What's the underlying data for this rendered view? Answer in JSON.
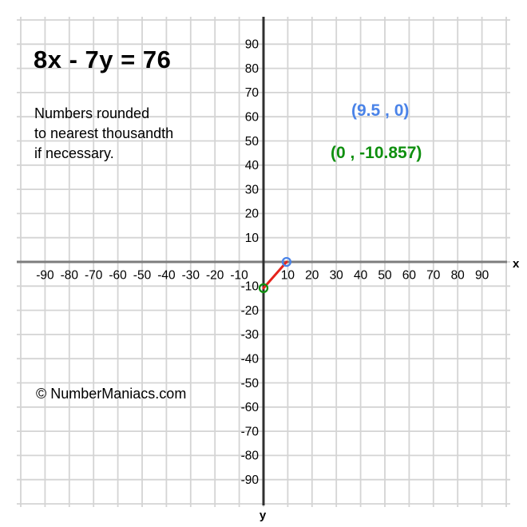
{
  "page": {
    "title": "8x - 7y = 76",
    "note_lines": [
      "Numbers rounded",
      "to nearest thousandth",
      "if necessary."
    ],
    "copyright": "© NumberManiacs.com"
  },
  "chart_data": {
    "type": "line",
    "title": "8x - 7y = 76",
    "equation": "8x - 7y = 76",
    "xlabel": "x",
    "ylabel": "y",
    "xlim": [
      -100,
      100
    ],
    "ylim": [
      -100,
      100
    ],
    "tick_step": 10,
    "x_ticks": [
      -90,
      -80,
      -70,
      -60,
      -50,
      -40,
      -30,
      -20,
      -10,
      10,
      20,
      30,
      40,
      50,
      60,
      70,
      80,
      90
    ],
    "y_ticks": [
      -90,
      -80,
      -70,
      -60,
      -50,
      -40,
      -30,
      -20,
      -10,
      10,
      20,
      30,
      40,
      50,
      60,
      70,
      80,
      90
    ],
    "grid": true,
    "segment_points": [
      [
        9.5,
        0
      ],
      [
        0,
        -10.857
      ]
    ],
    "x_intercept": {
      "x": 9.5,
      "y": 0,
      "label": "(9.5 , 0)",
      "color": "#4a83e8"
    },
    "y_intercept": {
      "x": 0,
      "y": -10.857,
      "label": "(0 , -10.857)",
      "color": "#0f8f0f"
    },
    "colors": {
      "segment": "#e5231b",
      "grid": "#d4d4d4",
      "x_axis": "#7d7d7d",
      "y_axis": "#2f2f2f",
      "tick_text": "#000000"
    }
  }
}
